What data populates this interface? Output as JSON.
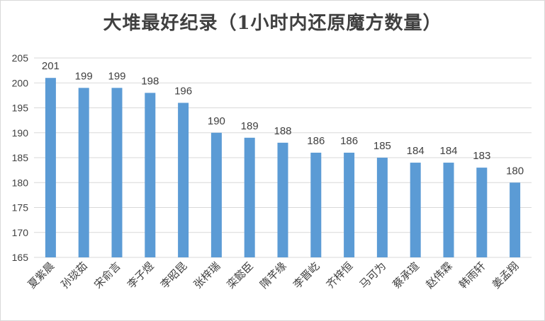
{
  "chart_data": {
    "type": "bar",
    "title": "大堆最好纪录（1小时内还原魔方数量）",
    "categories": [
      "夏紫晨",
      "孙琰茹",
      "宋俞言",
      "李子煜",
      "李昭昆",
      "张梓瑞",
      "栾懿臣",
      "隋芊缘",
      "李晋屹",
      "齐梓恒",
      "马可为",
      "蔡承瑄",
      "赵伟霖",
      "韩雨轩",
      "姜孟翔"
    ],
    "values": [
      201,
      199,
      199,
      198,
      196,
      190,
      189,
      188,
      186,
      186,
      185,
      184,
      184,
      183,
      180
    ],
    "ylim": [
      165,
      205
    ],
    "yticks": [
      165,
      170,
      175,
      180,
      185,
      190,
      195,
      200,
      205
    ],
    "grid": true,
    "legend": "none",
    "bar_color": "#5b9bd5",
    "grid_color": "#d9d9d9",
    "text_color": "#404040"
  }
}
